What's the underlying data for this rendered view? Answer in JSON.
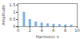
{
  "chart_data": {
    "type": "bar",
    "x_label": "Harmonic n",
    "y_label": "Amplitude",
    "x": [
      1,
      2,
      3,
      4,
      5,
      6,
      7,
      8,
      9
    ],
    "values": [
      1.0,
      0.5,
      0.33,
      0.25,
      0.2,
      0.17,
      0.14,
      0.12,
      0.11
    ],
    "color": "#7fb2e5",
    "xlim": [
      0,
      10
    ],
    "xticks": [
      0,
      2,
      4,
      6,
      8,
      10
    ],
    "ylim": [
      0,
      1.6
    ],
    "yticks": [
      0,
      0.5,
      1,
      1.5
    ],
    "grid": false
  }
}
